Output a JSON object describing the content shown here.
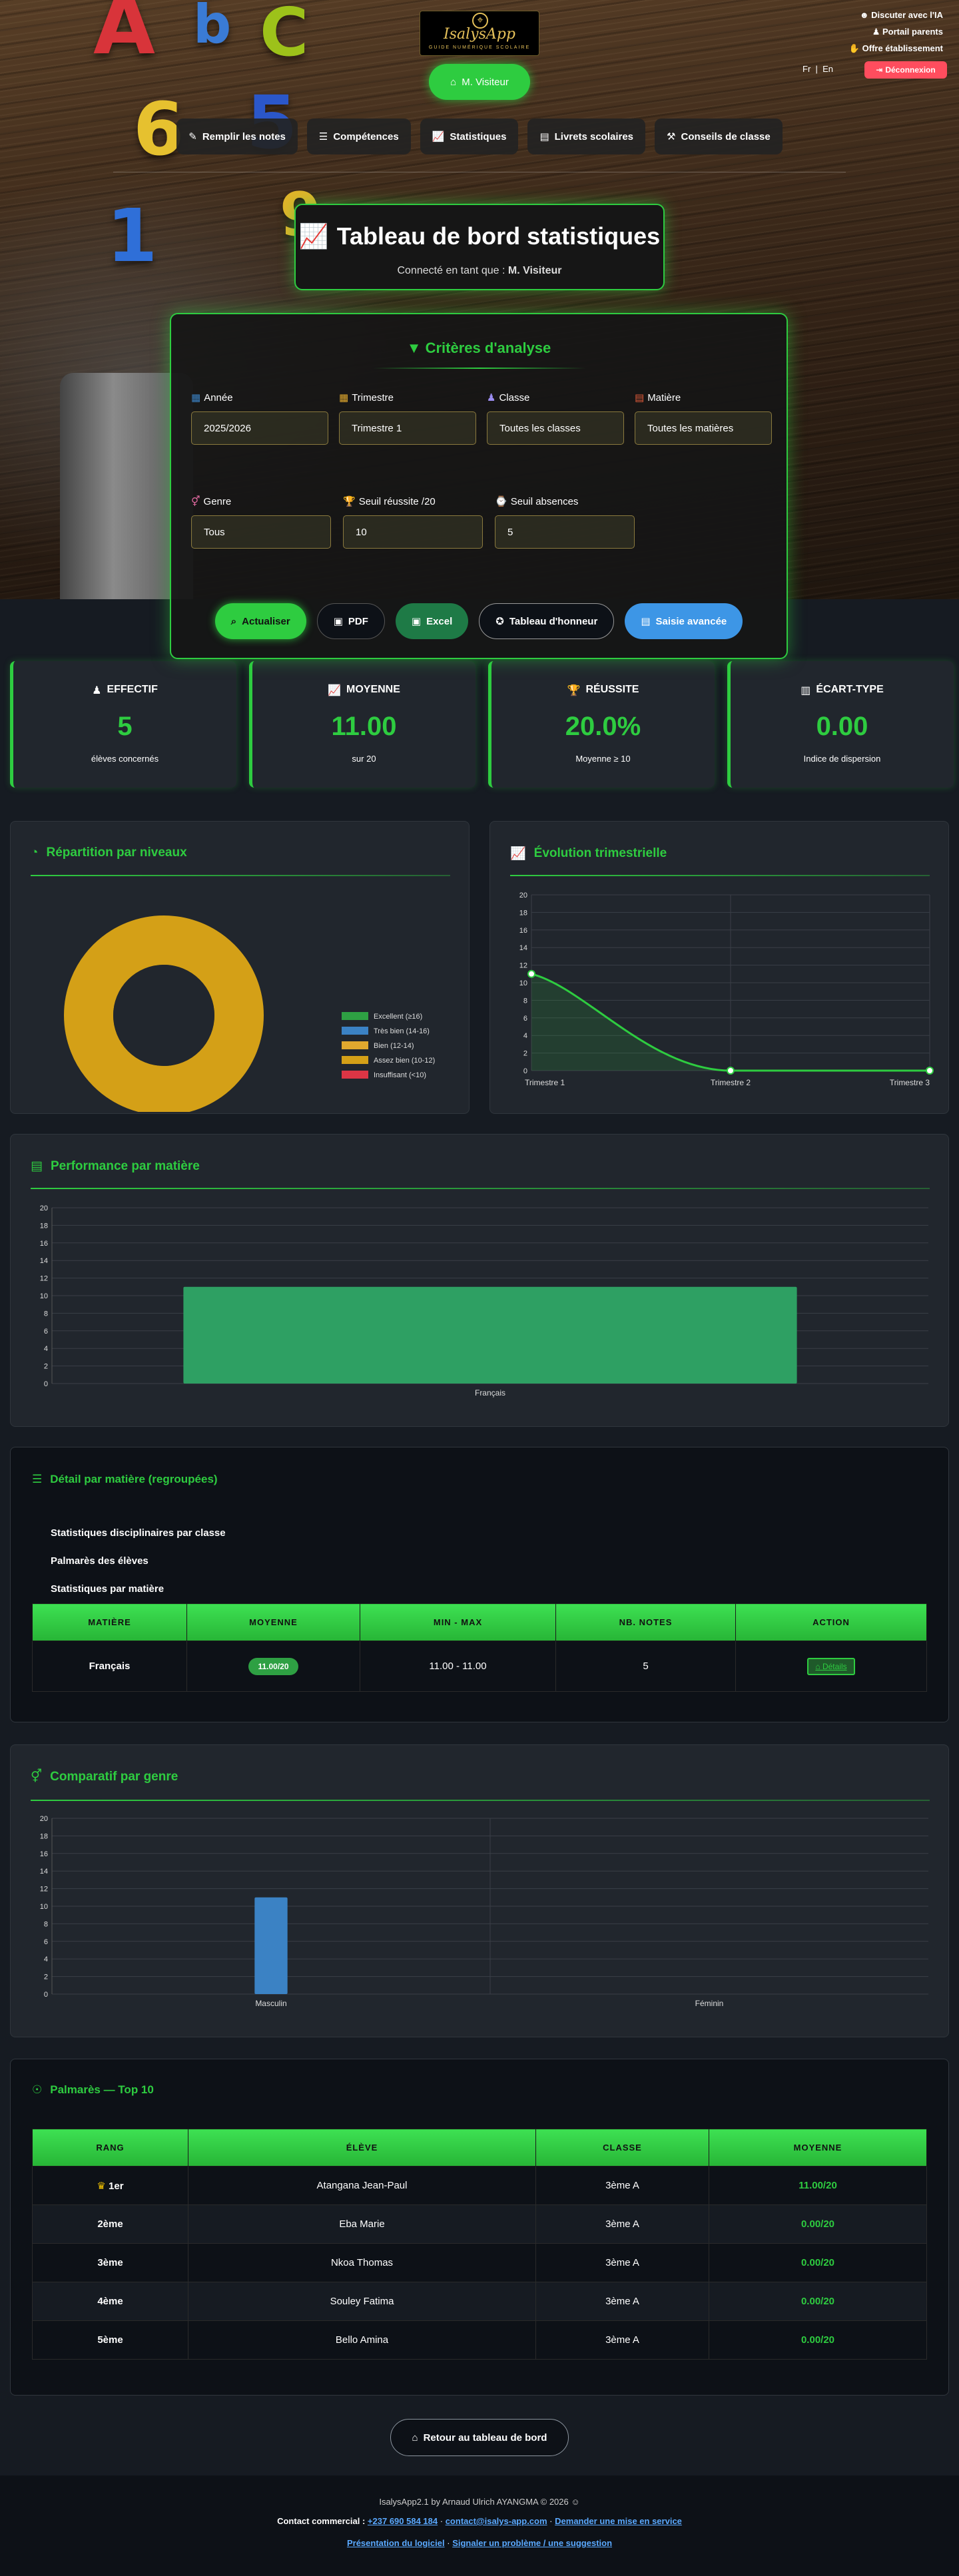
{
  "header": {
    "logo_name": "IsalysApp",
    "logo_tagline": "GUIDE NUMÉRIQUE SCOLAIRE",
    "visitor_button": "M. Visiteur",
    "top_links": [
      "Discuter avec l'IA",
      "Portail parents",
      "Offre établissement"
    ],
    "lang_fr": "Fr",
    "lang_sep": "|",
    "lang_en": "En",
    "logout": "Déconnexion"
  },
  "nav": [
    "Remplir les notes",
    "Compétences",
    "Statistiques",
    "Livrets scolaires",
    "Conseils de classe"
  ],
  "page": {
    "title": "Tableau de bord statistiques",
    "connected_prefix": "Connecté en tant que :",
    "connected_user": "M. Visiteur"
  },
  "criteria": {
    "title": "Critères d'analyse",
    "fields": [
      {
        "label": "Année",
        "value": "2025/2026"
      },
      {
        "label": "Trimestre",
        "value": "Trimestre 1"
      },
      {
        "label": "Classe",
        "value": "Toutes les classes"
      },
      {
        "label": "Matière",
        "value": "Toutes les matières"
      },
      {
        "label": "Genre",
        "value": "Tous"
      },
      {
        "label": "Seuil réussite /20",
        "value": "10"
      },
      {
        "label": "Seuil absences",
        "value": "5"
      }
    ],
    "buttons": [
      "Actualiser",
      "PDF",
      "Excel",
      "Tableau d'honneur",
      "Saisie avancée"
    ]
  },
  "kpis": [
    {
      "title": "EFFECTIF",
      "value": "5",
      "sub": "élèves concernés"
    },
    {
      "title": "MOYENNE",
      "value": "11.00",
      "sub": "sur 20"
    },
    {
      "title": "RÉUSSITE",
      "value": "20.0%",
      "sub": "Moyenne ≥ 10"
    },
    {
      "title": "ÉCART-TYPE",
      "value": "0.00",
      "sub": "Indice de dispersion"
    }
  ],
  "charts_titles": {
    "levels": "Répartition par niveaux",
    "trend": "Évolution trimestrielle",
    "subjects": "Performance par matière",
    "gender": "Comparatif par genre"
  },
  "chart_data": [
    {
      "type": "pie",
      "title": "Répartition par niveaux",
      "categories": [
        "Excellent (≥16)",
        "Très bien (14-16)",
        "Bien (12-14)",
        "Assez bien (10-12)",
        "Insuffisant (<10)"
      ],
      "values": [
        0,
        0,
        0,
        1,
        0
      ],
      "colors": [
        "#2ea043",
        "#3b82c4",
        "#e0a82e",
        "#d4a017",
        "#dc3545"
      ]
    },
    {
      "type": "line",
      "title": "Évolution trimestrielle",
      "categories": [
        "Trimestre 1",
        "Trimestre 2",
        "Trimestre 3"
      ],
      "values": [
        11,
        0,
        0
      ],
      "ylim": [
        0,
        20
      ],
      "yticks": [
        0,
        2,
        4,
        6,
        8,
        10,
        12,
        14,
        16,
        18,
        20
      ]
    },
    {
      "type": "bar",
      "title": "Performance par matière",
      "categories": [
        "Français"
      ],
      "values": [
        11
      ],
      "ylim": [
        0,
        20
      ],
      "yticks": [
        0,
        2,
        4,
        6,
        8,
        10,
        12,
        14,
        16,
        18,
        20
      ],
      "color": "#2ea063"
    },
    {
      "type": "bar",
      "title": "Comparatif par genre",
      "categories": [
        "Masculin",
        "Féminin"
      ],
      "values": [
        11,
        0
      ],
      "ylim": [
        0,
        20
      ],
      "yticks": [
        0,
        2,
        4,
        6,
        8,
        10,
        12,
        14,
        16,
        18,
        20
      ],
      "color": "#3b82c4"
    }
  ],
  "detail": {
    "title": "Détail par matière (regroupées)",
    "links": [
      "Statistiques disciplinaires par classe",
      "Palmarès des élèves",
      "Statistiques par matière"
    ],
    "headers": [
      "MATIÈRE",
      "MOYENNE",
      "MIN - MAX",
      "NB. NOTES",
      "ACTION"
    ],
    "rows": [
      {
        "subject": "Français",
        "avg": "11.00/20",
        "minmax": "11.00 - 11.00",
        "count": "5",
        "action": "Détails"
      }
    ]
  },
  "palmares": {
    "title": "Palmarès — Top 10",
    "headers": [
      "RANG",
      "ÉLÈVE",
      "CLASSE",
      "MOYENNE"
    ],
    "rows": [
      {
        "rank": "1er",
        "name": "Atangana Jean-Paul",
        "class": "3ème A",
        "avg": "11.00/20"
      },
      {
        "rank": "2ème",
        "name": "Eba Marie",
        "class": "3ème A",
        "avg": "0.00/20"
      },
      {
        "rank": "3ème",
        "name": "Nkoa Thomas",
        "class": "3ème A",
        "avg": "0.00/20"
      },
      {
        "rank": "4ème",
        "name": "Souley Fatima",
        "class": "3ème A",
        "avg": "0.00/20"
      },
      {
        "rank": "5ème",
        "name": "Bello Amina",
        "class": "3ème A",
        "avg": "0.00/20"
      }
    ]
  },
  "back_button": "Retour au tableau de bord",
  "footer": {
    "credit": "IsalysApp2.1 by Arnaud Ulrich AYANGMA © 2026",
    "contact_label": "Contact commercial :",
    "phone": "+237 690 584 184",
    "sep": "·",
    "email": "contact@isalys-app.com",
    "quote": "Demander une mise en service",
    "presentation": "Présentation du logiciel",
    "report": "Signaler un problème / une suggestion"
  }
}
